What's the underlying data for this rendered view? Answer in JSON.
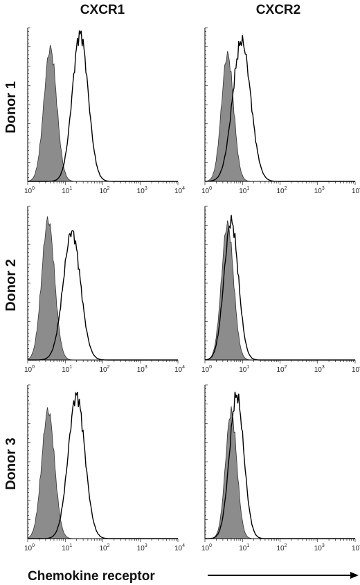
{
  "chart_data": {
    "type": "area",
    "description_free": true,
    "columns": [
      "CXCR1",
      "CXCR2"
    ],
    "rows": [
      "Donor 1",
      "Donor 2",
      "Donor 3"
    ],
    "xlabel": "Chemokine receptor",
    "xscale": "log",
    "xlim": [
      1,
      10000
    ],
    "x_ticks": [
      {
        "base": "10",
        "exp": "0"
      },
      {
        "base": "10",
        "exp": "1"
      },
      {
        "base": "10",
        "exp": "2"
      },
      {
        "base": "10",
        "exp": "3"
      },
      {
        "base": "10",
        "exp": "4"
      }
    ],
    "fill_color": "#8c8c8c",
    "line_color": "#000000",
    "panels": [
      {
        "row": "Donor 1",
        "column": "CXCR1",
        "filled": {
          "peak": 4.0,
          "sigma": 0.17,
          "height": 0.88
        },
        "outline": {
          "peak": 25,
          "sigma": 0.21,
          "height": 0.98
        }
      },
      {
        "row": "Donor 1",
        "column": "CXCR2",
        "filled": {
          "peak": 4.0,
          "sigma": 0.16,
          "height": 0.84
        },
        "outline": {
          "peak": 9.5,
          "sigma": 0.24,
          "height": 0.93
        }
      },
      {
        "row": "Donor 2",
        "column": "CXCR1",
        "filled": {
          "peak": 3.5,
          "sigma": 0.17,
          "height": 0.93
        },
        "outline": {
          "peak": 15,
          "sigma": 0.23,
          "height": 0.85
        }
      },
      {
        "row": "Donor 2",
        "column": "CXCR2",
        "filled": {
          "peak": 4.0,
          "sigma": 0.16,
          "height": 0.9
        },
        "outline": {
          "peak": 5.0,
          "sigma": 0.19,
          "height": 0.92
        }
      },
      {
        "row": "Donor 3",
        "column": "CXCR1",
        "filled": {
          "peak": 3.5,
          "sigma": 0.17,
          "height": 0.85
        },
        "outline": {
          "peak": 20,
          "sigma": 0.22,
          "height": 0.95
        }
      },
      {
        "row": "Donor 3",
        "column": "CXCR2",
        "filled": {
          "peak": 5.0,
          "sigma": 0.15,
          "height": 0.84
        },
        "outline": {
          "peak": 7.0,
          "sigma": 0.19,
          "height": 0.95
        }
      }
    ]
  }
}
